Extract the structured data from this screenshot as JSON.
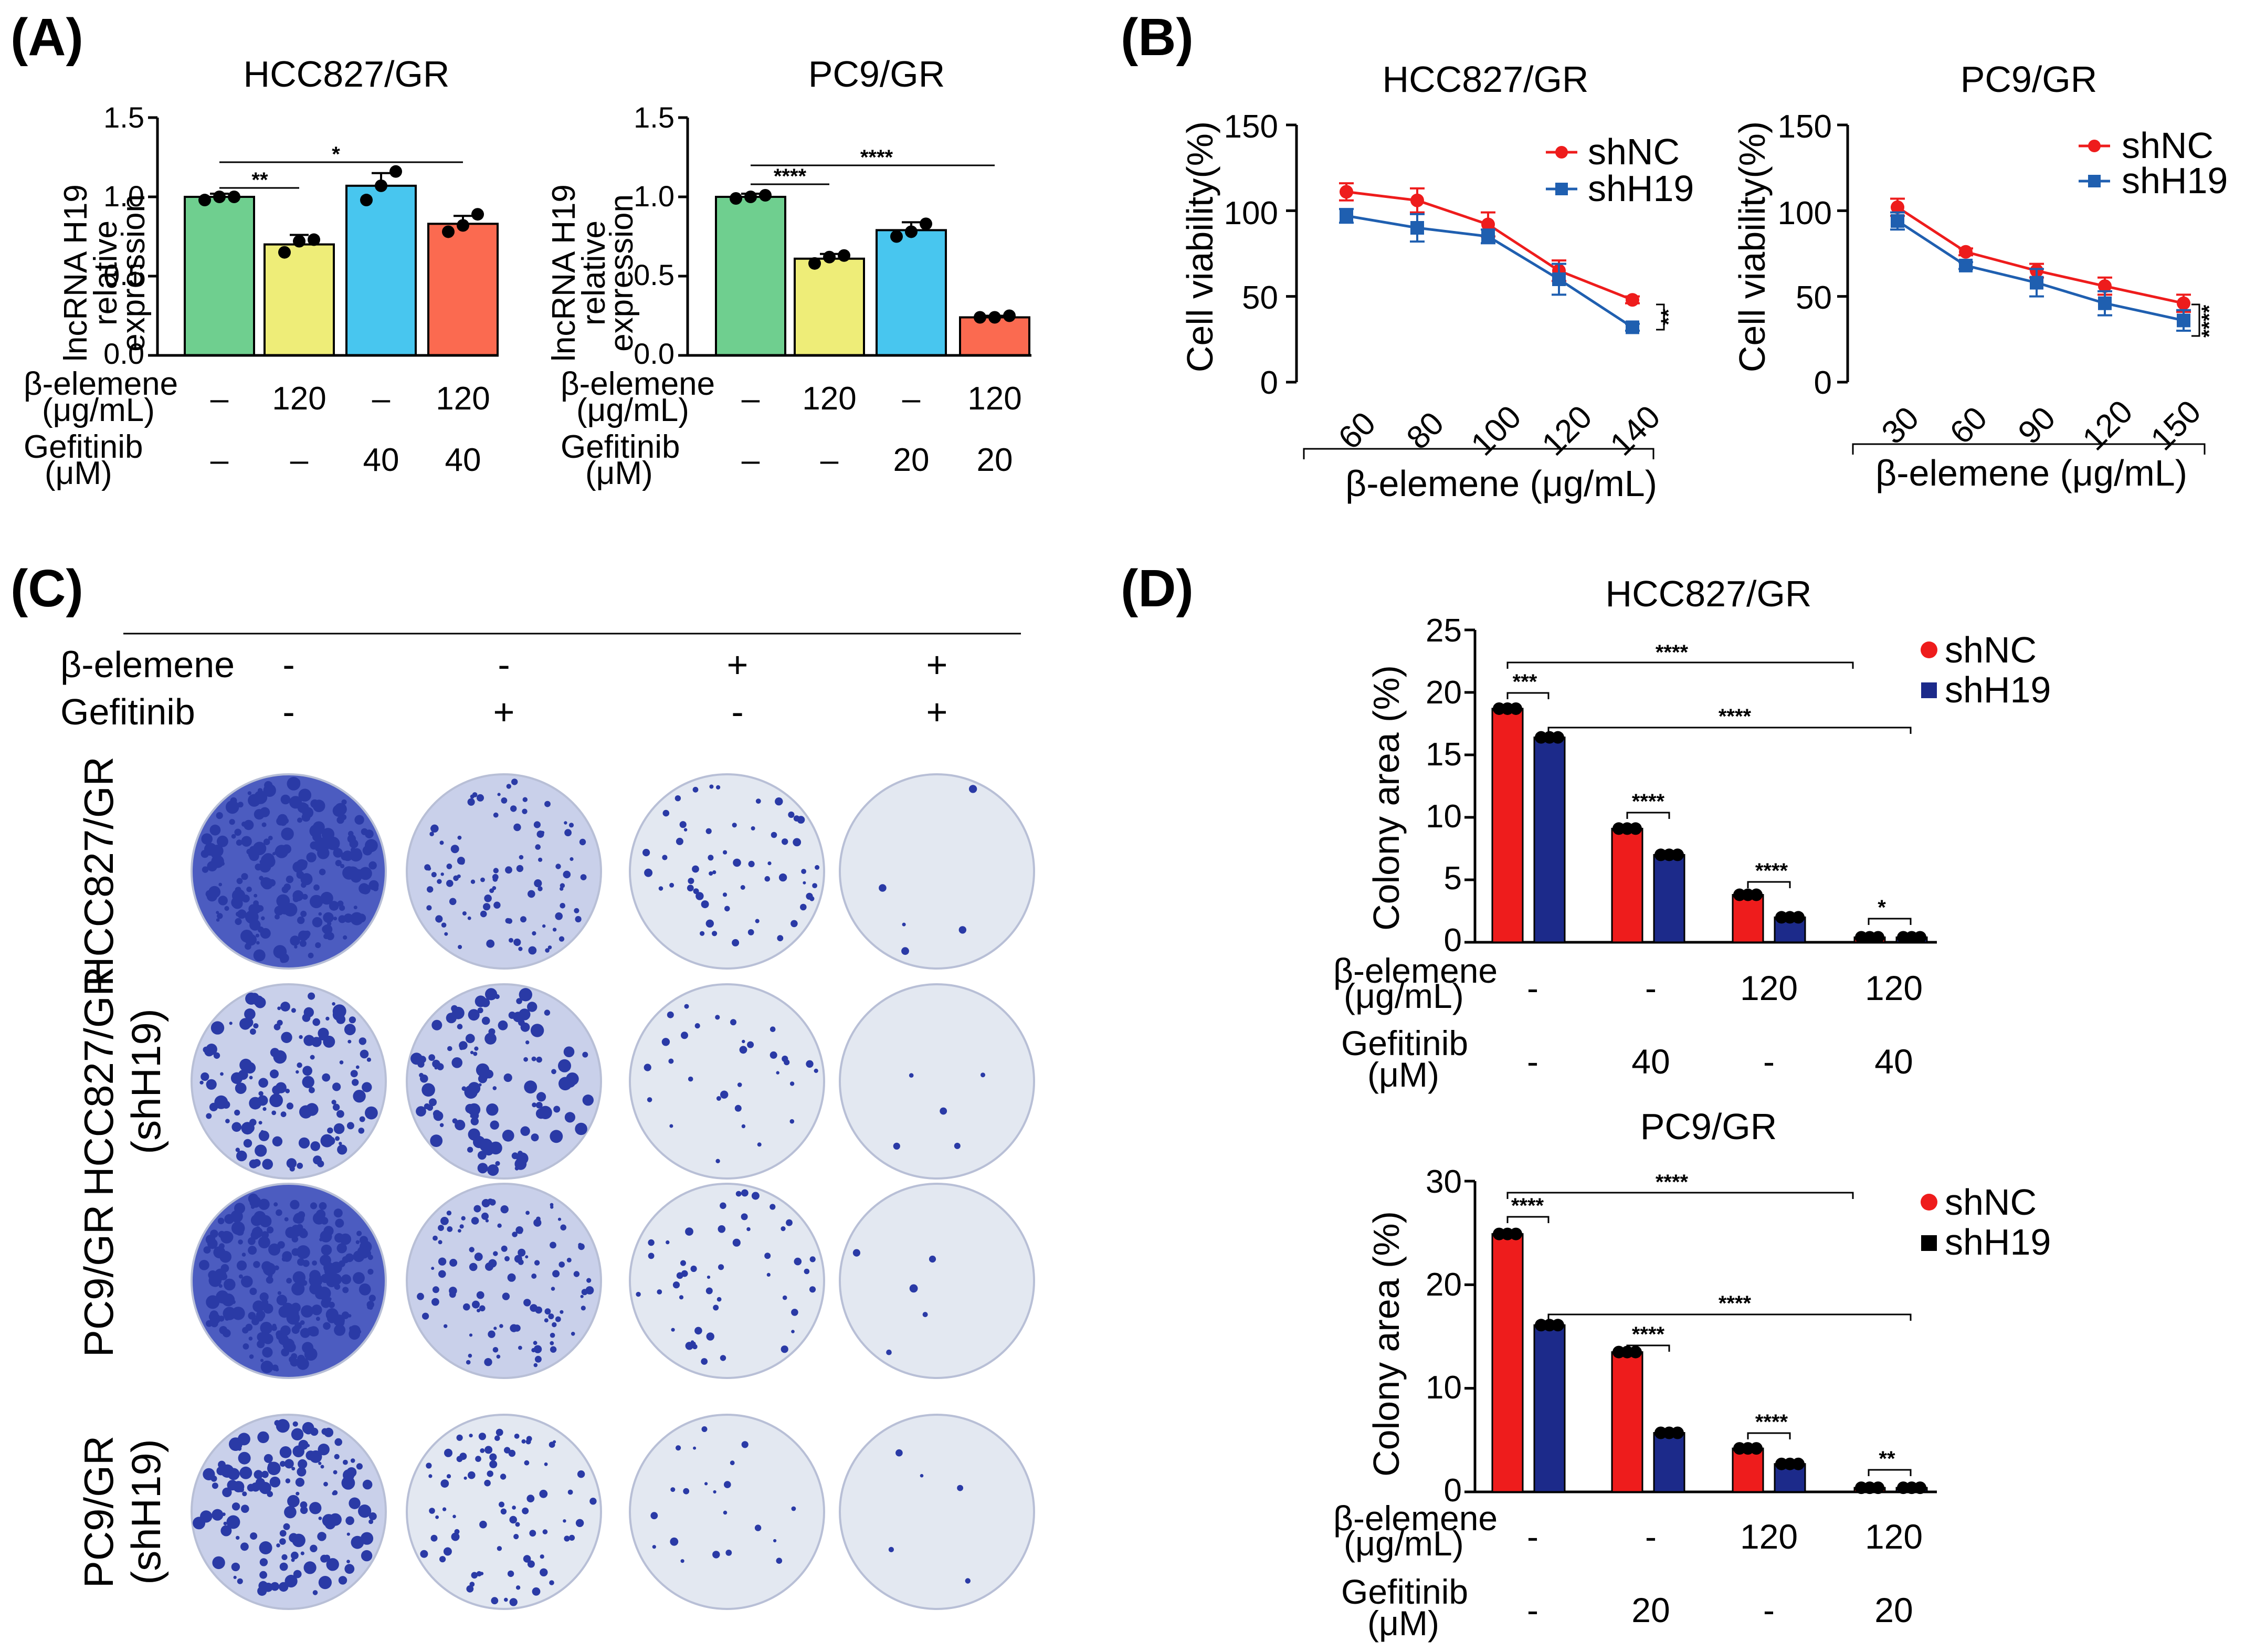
{
  "panels": {
    "A": "(A)",
    "B": "(B)",
    "C": "(C)",
    "D": "(D)"
  },
  "panelA": {
    "charts": [
      {
        "title": "HCC827/GR",
        "ylabel": [
          "lncRNA H19",
          "relative",
          "expression"
        ],
        "yticks": [
          "1.5",
          "1.0",
          "0.5",
          "0.0"
        ],
        "row1_label": [
          "β-elemene",
          "(μg/mL)"
        ],
        "row1_values": [
          "–",
          "120",
          "–",
          "120"
        ],
        "row2_label": [
          "Gefitinib",
          "(μM)"
        ],
        "row2_values": [
          "–",
          "–",
          "40",
          "40"
        ],
        "sig_labels": [
          "**",
          "*"
        ]
      },
      {
        "title": "PC9/GR",
        "ylabel": [
          "lncRNA H19",
          "relative",
          "expression"
        ],
        "yticks": [
          "1.5",
          "1.0",
          "0.5",
          "0.0"
        ],
        "row1_label": [
          "β-elemene",
          "(μg/mL)"
        ],
        "row1_values": [
          "–",
          "120",
          "–",
          "120"
        ],
        "row2_label": [
          "Gefitinib",
          "(μM)"
        ],
        "row2_values": [
          "–",
          "–",
          "20",
          "20"
        ],
        "sig_labels": [
          "****",
          "****"
        ]
      }
    ]
  },
  "panelB": {
    "charts": [
      {
        "title": "HCC827/GR",
        "ylabel": "Cell viability(%)",
        "yticks": [
          "150",
          "100",
          "50",
          "0"
        ],
        "xticks": [
          "60",
          "80",
          "100",
          "120",
          "140"
        ],
        "xlabel": "β-elemene (μg/mL)",
        "legend": [
          "shNC",
          "shH19"
        ],
        "sig": "**"
      },
      {
        "title": "PC9/GR",
        "ylabel": "Cell viability(%)",
        "yticks": [
          "150",
          "100",
          "50",
          "0"
        ],
        "xticks": [
          "30",
          "60",
          "90",
          "120",
          "150"
        ],
        "xlabel": "β-elemene (μg/mL)",
        "legend": [
          "shNC",
          "shH19"
        ],
        "sig": "****"
      }
    ]
  },
  "panelC": {
    "col_row1_label": "β-elemene",
    "col_row1_values": [
      "-",
      "-",
      "+",
      "+"
    ],
    "col_row2_label": "Gefitinib",
    "col_row2_values": [
      "-",
      "+",
      "-",
      "+"
    ],
    "row_labels": [
      [
        "HCC827/GR"
      ],
      [
        "HCC827/GR",
        "(shH19)"
      ],
      [
        "PC9/GR"
      ],
      [
        "PC9/GR",
        "(shH19)"
      ]
    ]
  },
  "panelD": {
    "charts": [
      {
        "title": "HCC827/GR",
        "ylabel": "Colony area (%)",
        "yticks": [
          "25",
          "20",
          "15",
          "10",
          "5",
          "0"
        ],
        "legend": [
          "shNC",
          "shH19"
        ],
        "row1_label": [
          "β-elemene",
          "(μg/mL)"
        ],
        "row1_values": [
          "-",
          "-",
          "120",
          "120"
        ],
        "row2_label": [
          "Gefitinib",
          "(μM)"
        ],
        "row2_values": [
          "-",
          "40",
          "-",
          "40"
        ],
        "sig_labels": [
          "***",
          "****",
          "****",
          "*",
          "****",
          "****"
        ]
      },
      {
        "title": "PC9/GR",
        "ylabel": "Colony area (%)",
        "yticks": [
          "30",
          "20",
          "10",
          "0"
        ],
        "legend": [
          "shNC",
          "shH19"
        ],
        "row1_label": [
          "β-elemene",
          "(μg/mL)"
        ],
        "row1_values": [
          "-",
          "-",
          "120",
          "120"
        ],
        "row2_label": [
          "Gefitinib",
          "(μM)"
        ],
        "row2_values": [
          "-",
          "20",
          "-",
          "20"
        ],
        "sig_labels": [
          "****",
          "****",
          "****",
          "**",
          "****",
          "****"
        ]
      }
    ]
  },
  "colors": {
    "green": "#6fcf8f",
    "yellow": "#eeed78",
    "blue": "#48c6ef",
    "salmon": "#fb6a50",
    "red": "#ee1c1c",
    "darkblue": "#1f5fb0",
    "navy": "#1c2a8a",
    "colony": "#2a3aa6",
    "plate": "#dde3ef"
  },
  "chart_data": [
    {
      "type": "bar",
      "title": "HCC827/GR",
      "ylabel": "lncRNA H19 relative expression",
      "ylim": [
        0,
        1.5
      ],
      "categories": [
        "Ctrl",
        "β-elemene 120",
        "Gefitinib 40",
        "β-elemene 120 + Gefitinib 40"
      ],
      "values": [
        1.0,
        0.7,
        1.07,
        0.83
      ],
      "errors": [
        0.02,
        0.06,
        0.08,
        0.05
      ],
      "points": [
        [
          0.98,
          1.0,
          1.0
        ],
        [
          0.65,
          0.72,
          0.73
        ],
        [
          0.98,
          1.07,
          1.16
        ],
        [
          0.78,
          0.82,
          0.89
        ]
      ]
    },
    {
      "type": "bar",
      "title": "PC9/GR",
      "ylabel": "lncRNA H19 relative expression",
      "ylim": [
        0,
        1.5
      ],
      "categories": [
        "Ctrl",
        "β-elemene 120",
        "Gefitinib 20",
        "β-elemene 120 + Gefitinib 20"
      ],
      "values": [
        1.0,
        0.61,
        0.79,
        0.24
      ],
      "errors": [
        0.02,
        0.03,
        0.05,
        0.01
      ],
      "points": [
        [
          0.99,
          1.0,
          1.01
        ],
        [
          0.58,
          0.62,
          0.63
        ],
        [
          0.75,
          0.78,
          0.83
        ],
        [
          0.24,
          0.24,
          0.25
        ]
      ]
    },
    {
      "type": "line",
      "title": "HCC827/GR",
      "xlabel": "β-elemene (μg/mL)",
      "ylabel": "Cell viability(%)",
      "ylim": [
        0,
        150
      ],
      "x": [
        60,
        80,
        100,
        120,
        140
      ],
      "series": [
        {
          "name": "shNC",
          "values": [
            111,
            106,
            92,
            65,
            48
          ],
          "errors": [
            5,
            7,
            7,
            6,
            2
          ]
        },
        {
          "name": "shH19",
          "values": [
            97,
            90,
            85,
            60,
            32
          ],
          "errors": [
            4,
            8,
            4,
            9,
            2
          ]
        }
      ]
    },
    {
      "type": "line",
      "title": "PC9/GR",
      "xlabel": "β-elemene (μg/mL)",
      "ylabel": "Cell viability(%)",
      "ylim": [
        0,
        150
      ],
      "x": [
        30,
        60,
        90,
        120,
        150
      ],
      "series": [
        {
          "name": "shNC",
          "values": [
            102,
            76,
            65,
            56,
            46
          ],
          "errors": [
            5,
            2,
            4,
            5,
            5
          ]
        },
        {
          "name": "shH19",
          "values": [
            94,
            68,
            58,
            46,
            36
          ],
          "errors": [
            5,
            2,
            8,
            7,
            6
          ]
        }
      ]
    },
    {
      "type": "bar",
      "title": "HCC827/GR",
      "ylabel": "Colony area (%)",
      "ylim": [
        0,
        25
      ],
      "categories": [
        "Ctrl",
        "Gefitinib 40",
        "β-elemene 120",
        "β-elemene 120 + Gefitinib 40"
      ],
      "series": [
        {
          "name": "shNC",
          "values": [
            18.7,
            9.1,
            3.8,
            0.4
          ]
        },
        {
          "name": "shH19",
          "values": [
            16.4,
            7.0,
            2.0,
            0.4
          ]
        }
      ]
    },
    {
      "type": "bar",
      "title": "PC9/GR",
      "ylabel": "Colony area (%)",
      "ylim": [
        0,
        30
      ],
      "categories": [
        "Ctrl",
        "Gefitinib 20",
        "β-elemene 120",
        "β-elemene 120 + Gefitinib 20"
      ],
      "series": [
        {
          "name": "shNC",
          "values": [
            24.9,
            13.5,
            4.2,
            0.4
          ]
        },
        {
          "name": "shH19",
          "values": [
            16.1,
            5.7,
            2.7,
            0.4
          ]
        }
      ]
    }
  ]
}
